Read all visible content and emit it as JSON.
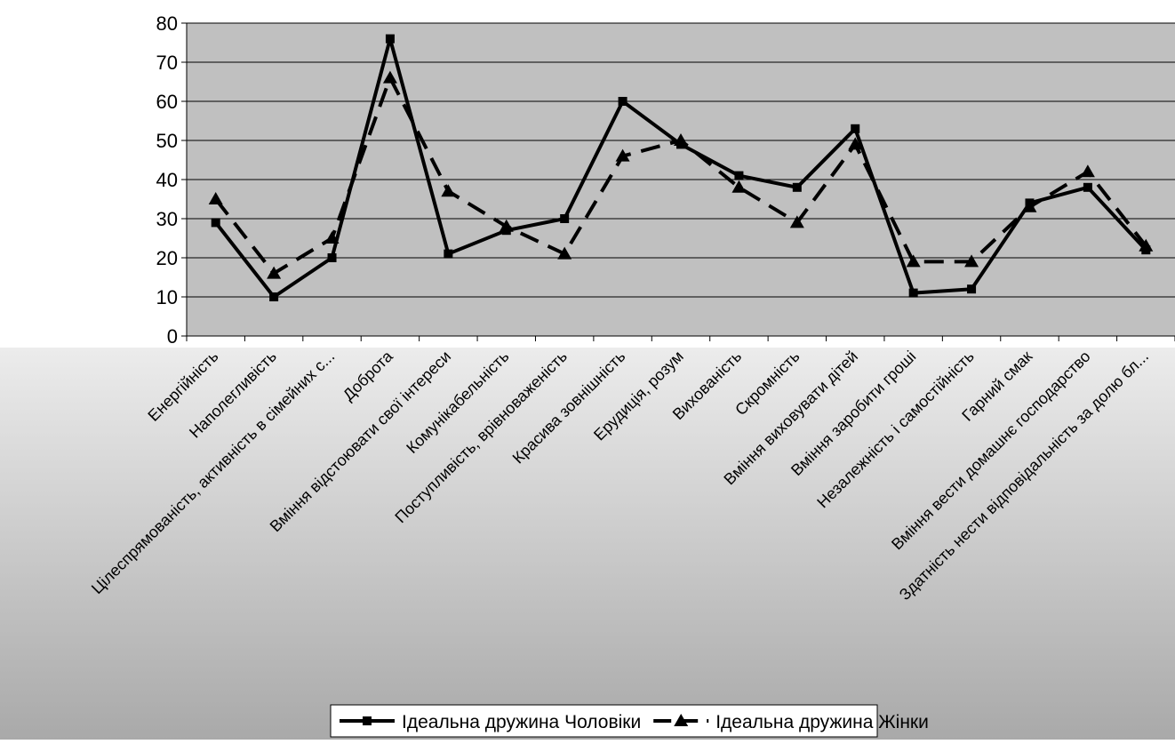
{
  "chart_data": {
    "type": "line",
    "title": "",
    "xlabel": "",
    "ylabel": "",
    "ylim": [
      0,
      80
    ],
    "yticks": [
      0,
      10,
      20,
      30,
      40,
      50,
      60,
      70,
      80
    ],
    "grid": true,
    "legend_position": "bottom",
    "categories": [
      "Енергійність",
      "Наполегливість",
      "Цілеспрямованість, активність в сімейних с...",
      "Доброта",
      "Вміння відстоювати свої інтереси",
      "Комунікабельність",
      "Поступливість, врівноваженість",
      "Красива зовнішність",
      "Ерудиція, розум",
      "Вихованість",
      "Скромність",
      "Вміння виховувати дітей",
      "Вміння заробити гроші",
      "Незалежність і самостійність",
      "Гарний смак",
      "Вміння вести домашнє господарство",
      "Здатність нести відповідальність за долю бл..."
    ],
    "series": [
      {
        "name": "Ідеальна дружина Чоловіки",
        "marker": "square",
        "line_style": "solid",
        "color": "#000000",
        "values": [
          29,
          10,
          20,
          76,
          21,
          27,
          30,
          60,
          49,
          41,
          38,
          53,
          11,
          12,
          34,
          38,
          22
        ]
      },
      {
        "name": "Ідеальна дружина Жінки",
        "marker": "triangle",
        "line_style": "dashed",
        "color": "#000000",
        "values": [
          35,
          16,
          25,
          66,
          37,
          28,
          21,
          46,
          50,
          38,
          29,
          49,
          19,
          19,
          33,
          42,
          23
        ]
      }
    ]
  },
  "colors": {
    "plot_area": "#c0c0c0",
    "grid": "#000000"
  }
}
